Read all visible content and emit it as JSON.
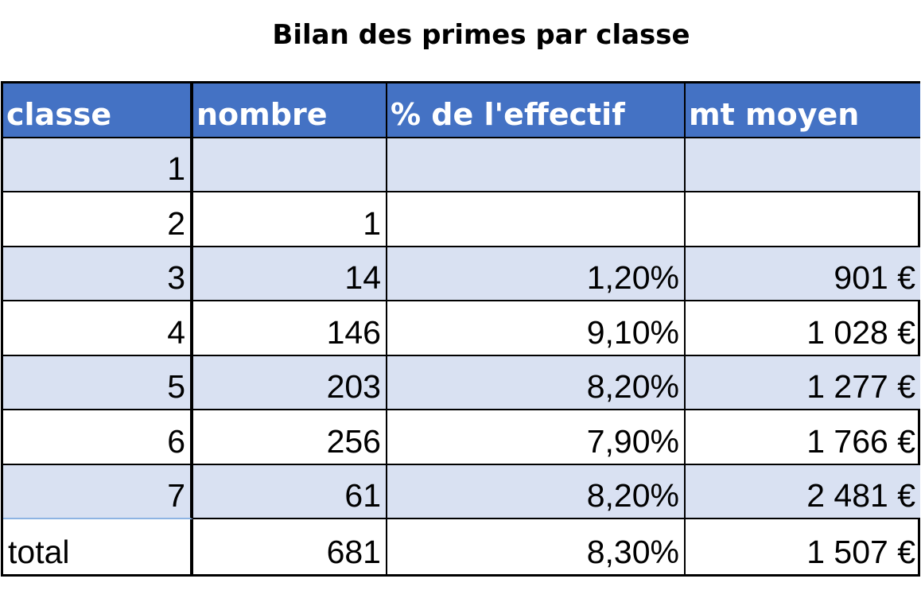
{
  "title": "Bilan des primes par classe",
  "table": {
    "headers": [
      "classe",
      "nombre",
      "% de l'effectif",
      "mt moyen"
    ],
    "rows": [
      [
        "1",
        "",
        "",
        ""
      ],
      [
        "2",
        "1",
        "",
        ""
      ],
      [
        "3",
        "14",
        "1,20%",
        "901 €"
      ],
      [
        "4",
        "146",
        "9,10%",
        "1 028 €"
      ],
      [
        "5",
        "203",
        "8,20%",
        "1 277 €"
      ],
      [
        "6",
        "256",
        "7,90%",
        "1 766 €"
      ],
      [
        "7",
        "61",
        "8,20%",
        "2 481 €"
      ]
    ],
    "total": [
      "total",
      "681",
      "8,30%",
      "1 507 €"
    ]
  },
  "colors": {
    "header_bg": "#4472c4",
    "band_bg": "#d9e1f2",
    "header_text": "#ffffff"
  }
}
